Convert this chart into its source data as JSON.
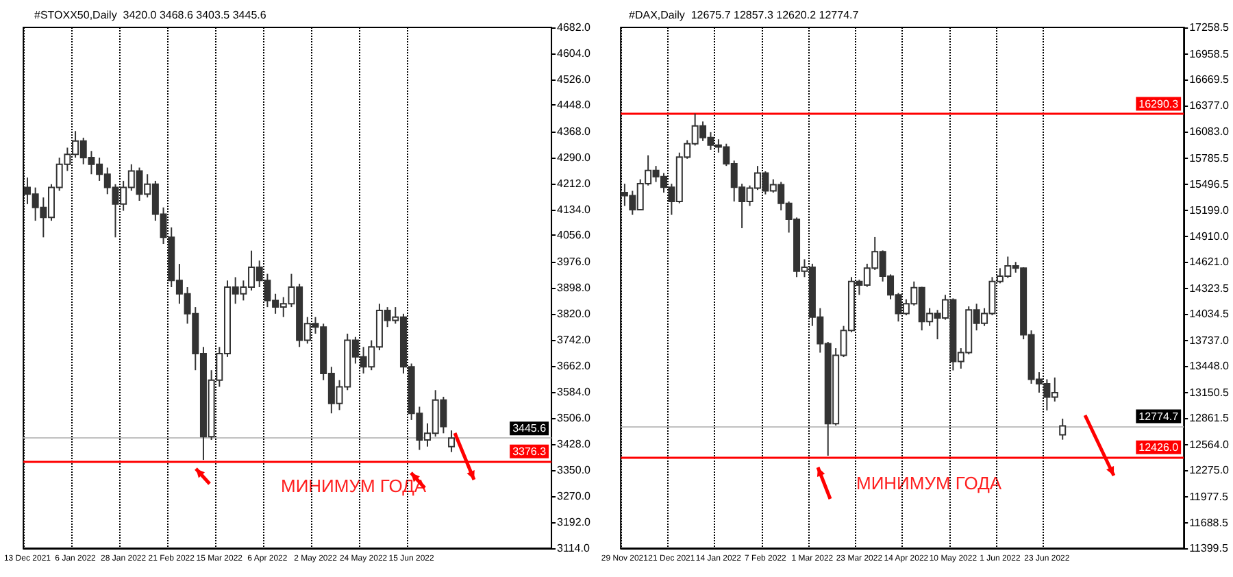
{
  "chart_data": [
    {
      "type": "candlestick",
      "title": "#STOXX50,Daily  3420.0 3468.6 3403.5 3445.6",
      "color": "#333333",
      "grid": "x",
      "categories": [
        "13 Dec 2021",
        null,
        null,
        null,
        null,
        null,
        "6 Jan 2022",
        null,
        null,
        null,
        null,
        null,
        "28 Jan 2022",
        null,
        null,
        null,
        null,
        null,
        "21 Feb 2022",
        null,
        null,
        null,
        null,
        null,
        "15 Mar 2022",
        null,
        null,
        null,
        null,
        null,
        "6 Apr 2022",
        null,
        null,
        null,
        null,
        null,
        "2 May 2022",
        null,
        null,
        null,
        null,
        null,
        "24 May 2022",
        null,
        null,
        null,
        null,
        null,
        "15 Jun 2022",
        null,
        null,
        null,
        null,
        null,
        null,
        null,
        null,
        null,
        null,
        null,
        null,
        null,
        null,
        null,
        null,
        null
      ],
      "ohlc": [
        [
          4200,
          4230,
          4150,
          4180
        ],
        [
          4180,
          4200,
          4100,
          4140
        ],
        [
          4140,
          4170,
          4050,
          4110
        ],
        [
          4110,
          4210,
          4100,
          4200
        ],
        [
          4200,
          4290,
          4190,
          4270
        ],
        [
          4270,
          4320,
          4250,
          4300
        ],
        [
          4300,
          4370,
          4290,
          4340
        ],
        [
          4340,
          4350,
          4270,
          4290
        ],
        [
          4290,
          4310,
          4240,
          4270
        ],
        [
          4270,
          4290,
          4220,
          4240
        ],
        [
          4240,
          4260,
          4180,
          4200
        ],
        [
          4200,
          4210,
          4050,
          4150
        ],
        [
          4150,
          4220,
          4130,
          4200
        ],
        [
          4200,
          4270,
          4190,
          4250
        ],
        [
          4250,
          4260,
          4160,
          4180
        ],
        [
          4180,
          4240,
          4170,
          4210
        ],
        [
          4210,
          4220,
          4100,
          4120
        ],
        [
          4120,
          4140,
          4030,
          4050
        ],
        [
          4050,
          4080,
          3900,
          3920
        ],
        [
          3920,
          3970,
          3850,
          3880
        ],
        [
          3880,
          3900,
          3790,
          3820
        ],
        [
          3820,
          3840,
          3650,
          3700
        ],
        [
          3700,
          3720,
          3380,
          3450
        ],
        [
          3450,
          3650,
          3440,
          3620
        ],
        [
          3620,
          3720,
          3600,
          3700
        ],
        [
          3700,
          3920,
          3690,
          3900
        ],
        [
          3900,
          3930,
          3850,
          3880
        ],
        [
          3880,
          3920,
          3860,
          3900
        ],
        [
          3900,
          4010,
          3890,
          3960
        ],
        [
          3960,
          3980,
          3900,
          3920
        ],
        [
          3920,
          3940,
          3840,
          3860
        ],
        [
          3860,
          3880,
          3820,
          3840
        ],
        [
          3840,
          3870,
          3810,
          3850
        ],
        [
          3850,
          3940,
          3840,
          3900
        ],
        [
          3900,
          3910,
          3720,
          3740
        ],
        [
          3740,
          3810,
          3730,
          3790
        ],
        [
          3790,
          3810,
          3760,
          3780
        ],
        [
          3780,
          3790,
          3620,
          3640
        ],
        [
          3640,
          3660,
          3520,
          3550
        ],
        [
          3550,
          3620,
          3530,
          3600
        ],
        [
          3600,
          3760,
          3590,
          3740
        ],
        [
          3740,
          3750,
          3670,
          3690
        ],
        [
          3690,
          3720,
          3640,
          3660
        ],
        [
          3660,
          3740,
          3650,
          3720
        ],
        [
          3720,
          3850,
          3710,
          3830
        ],
        [
          3830,
          3840,
          3780,
          3800
        ],
        [
          3800,
          3840,
          3790,
          3810
        ],
        [
          3810,
          3820,
          3640,
          3660
        ],
        [
          3660,
          3670,
          3500,
          3520
        ],
        [
          3520,
          3540,
          3410,
          3440
        ],
        [
          3440,
          3490,
          3420,
          3460
        ],
        [
          3460,
          3590,
          3450,
          3560
        ],
        [
          3560,
          3570,
          3460,
          3480
        ],
        [
          3420.0,
          3468.6,
          3403.5,
          3445.6
        ],
        null,
        null,
        null,
        null,
        null,
        null,
        null,
        null,
        null,
        null,
        null,
        null
      ],
      "ylim": [
        3114,
        4682
      ],
      "yticks": [
        {
          "value": 3114,
          "label": "3114.0"
        },
        {
          "value": 3192,
          "label": "3192.0"
        },
        {
          "value": 3270,
          "label": "3270.0"
        },
        {
          "value": 3350,
          "label": "3350.0"
        },
        {
          "value": 3428,
          "label": "3428.0"
        },
        {
          "value": 3506,
          "label": "3506.0"
        },
        {
          "value": 3584,
          "label": "3584.0"
        },
        {
          "value": 3662,
          "label": "3662.0"
        },
        {
          "value": 3742,
          "label": "3742.0"
        },
        {
          "value": 3820,
          "label": "3820.0"
        },
        {
          "value": 3898,
          "label": "3898.0"
        },
        {
          "value": 3976,
          "label": "3976.0"
        },
        {
          "value": 4056,
          "label": "4056.0"
        },
        {
          "value": 4134,
          "label": "4134.0"
        },
        {
          "value": 4212,
          "label": "4212.0"
        },
        {
          "value": 4290,
          "label": "4290.0"
        },
        {
          "value": 4368,
          "label": "4368.0"
        },
        {
          "value": 4448,
          "label": "4448.0"
        },
        {
          "value": 4526,
          "label": "4526.0"
        },
        {
          "value": 4604,
          "label": "4604.0"
        },
        {
          "value": 4682,
          "label": "4682.0"
        }
      ],
      "ref_lines": [
        {
          "axis": "y",
          "value": 3376.3,
          "label": "3376.3",
          "color": "#ff0000"
        },
        {
          "axis": "y",
          "value": 3445.6,
          "label": "3445.6",
          "color": "#c0c0c0"
        }
      ],
      "annotations": [
        "МИНИМУМ ГОДА"
      ]
    },
    {
      "type": "candlestick",
      "title": "#DAX,Daily  12675.7 12857.3 12620.2 12774.7",
      "color": "#333333",
      "grid": "x",
      "categories": [
        "29 Nov 2021",
        null,
        null,
        null,
        null,
        null,
        "21 Dec 2021",
        null,
        null,
        null,
        null,
        null,
        "14 Jan 2022",
        null,
        null,
        null,
        null,
        null,
        "7 Feb 2022",
        null,
        null,
        null,
        null,
        null,
        "1 Mar 2022",
        null,
        null,
        null,
        null,
        null,
        "23 Mar 2022",
        null,
        null,
        null,
        null,
        null,
        "14 Apr 2022",
        null,
        null,
        null,
        null,
        null,
        "10 May 2022",
        null,
        null,
        null,
        null,
        null,
        "1 Jun 2022",
        null,
        null,
        null,
        null,
        null,
        "23 Jun 2022",
        null,
        null,
        null,
        null,
        null,
        null,
        null,
        null,
        null,
        null,
        null,
        null,
        null,
        null,
        null,
        null,
        null
      ],
      "ohlc": [
        [
          15400,
          15500,
          15250,
          15365
        ],
        [
          15365,
          15420,
          15150,
          15207
        ],
        [
          15207,
          15550,
          15200,
          15500
        ],
        [
          15500,
          15820,
          15480,
          15650
        ],
        [
          15650,
          15700,
          15520,
          15580
        ],
        [
          15580,
          15620,
          15400,
          15460
        ],
        [
          15460,
          15500,
          15150,
          15300
        ],
        [
          15300,
          15850,
          15280,
          15800
        ],
        [
          15800,
          15990,
          15780,
          15950
        ],
        [
          15950,
          16290,
          15930,
          16150
        ],
        [
          16150,
          16200,
          15980,
          16020
        ],
        [
          16020,
          16080,
          15880,
          15935
        ],
        [
          15935,
          16000,
          15850,
          15914
        ],
        [
          15914,
          15950,
          15700,
          15725
        ],
        [
          15725,
          15760,
          15300,
          15460
        ],
        [
          15460,
          15500,
          15000,
          15300
        ],
        [
          15300,
          15480,
          15250,
          15450
        ],
        [
          15450,
          15700,
          15430,
          15620
        ],
        [
          15620,
          15640,
          15380,
          15420
        ],
        [
          15420,
          15550,
          15400,
          15490
        ],
        [
          15490,
          15520,
          15200,
          15280
        ],
        [
          15280,
          15300,
          14950,
          15100
        ],
        [
          15100,
          15120,
          14450,
          14515
        ],
        [
          14515,
          14650,
          14450,
          14560
        ],
        [
          14560,
          14600,
          13900,
          14000
        ],
        [
          14000,
          14100,
          13600,
          13700
        ],
        [
          13700,
          13720,
          12440,
          12800
        ],
        [
          12800,
          13650,
          12780,
          13570
        ],
        [
          13570,
          13900,
          13550,
          13850
        ],
        [
          13850,
          14450,
          13830,
          14400
        ],
        [
          14400,
          14420,
          14250,
          14360
        ],
        [
          14360,
          14600,
          14340,
          14550
        ],
        [
          14550,
          14900,
          14530,
          14735
        ],
        [
          14735,
          14750,
          14400,
          14460
        ],
        [
          14460,
          14480,
          14200,
          14250
        ],
        [
          14250,
          14270,
          13950,
          14040
        ],
        [
          14040,
          14200,
          14020,
          14150
        ],
        [
          14150,
          14400,
          14130,
          14330
        ],
        [
          14330,
          14340,
          13850,
          13950
        ],
        [
          13950,
          14100,
          13900,
          14040
        ],
        [
          14040,
          14080,
          13750,
          13990
        ],
        [
          13990,
          14250,
          13970,
          14195
        ],
        [
          14195,
          14210,
          13400,
          13500
        ],
        [
          13500,
          13650,
          13420,
          13600
        ],
        [
          13600,
          14120,
          13580,
          14080
        ],
        [
          14080,
          14150,
          13850,
          13930
        ],
        [
          13930,
          14100,
          13900,
          14040
        ],
        [
          14040,
          14450,
          14020,
          14400
        ],
        [
          14400,
          14550,
          14380,
          14460
        ],
        [
          14460,
          14680,
          14440,
          14575
        ],
        [
          14575,
          14620,
          14500,
          14550
        ],
        [
          14550,
          14560,
          13750,
          13800
        ],
        [
          13800,
          13850,
          13250,
          13300
        ],
        [
          13300,
          13380,
          13150,
          13250
        ],
        [
          13250,
          13300,
          12950,
          13100
        ],
        [
          13100,
          13320,
          13050,
          13150
        ],
        [
          12675.7,
          12857.3,
          12620.2,
          12774.7
        ],
        null,
        null,
        null,
        null,
        null,
        null,
        null,
        null,
        null,
        null,
        null,
        null,
        null,
        null,
        null
      ],
      "ylim": [
        11399.5,
        17258.5
      ],
      "yticks": [
        {
          "value": 11399.5,
          "label": "11399.5"
        },
        {
          "value": 11688.5,
          "label": "11688.5"
        },
        {
          "value": 11977.5,
          "label": "11977.5"
        },
        {
          "value": 12275,
          "label": "12275.0"
        },
        {
          "value": 12564,
          "label": "12564.0"
        },
        {
          "value": 12861.5,
          "label": "12861.5"
        },
        {
          "value": 13150.5,
          "label": "13150.5"
        },
        {
          "value": 13448,
          "label": "13448.0"
        },
        {
          "value": 13737,
          "label": "13737.0"
        },
        {
          "value": 14034.5,
          "label": "14034.5"
        },
        {
          "value": 14323.5,
          "label": "14323.5"
        },
        {
          "value": 14621,
          "label": "14621.0"
        },
        {
          "value": 14910,
          "label": "14910.0"
        },
        {
          "value": 15199,
          "label": "15199.0"
        },
        {
          "value": 15496.5,
          "label": "15496.5"
        },
        {
          "value": 15785.5,
          "label": "15785.5"
        },
        {
          "value": 16083,
          "label": "16083.0"
        },
        {
          "value": 16377,
          "label": "16377.0"
        },
        {
          "value": 16669.5,
          "label": "16669.5"
        },
        {
          "value": 16958.5,
          "label": "16958.5"
        },
        {
          "value": 17258.5,
          "label": "17258.5"
        }
      ],
      "ref_lines": [
        {
          "axis": "y",
          "value": 16290.3,
          "label": "16290.3",
          "color": "#ff0000"
        },
        {
          "axis": "y",
          "value": 12426.0,
          "label": "12426.0",
          "color": "#ff0000"
        },
        {
          "axis": "y",
          "value": 12774.7,
          "label": "12774.7",
          "color": "#c0c0c0"
        }
      ],
      "annotations": [
        "МИНИМУМ ГОДА"
      ]
    }
  ]
}
